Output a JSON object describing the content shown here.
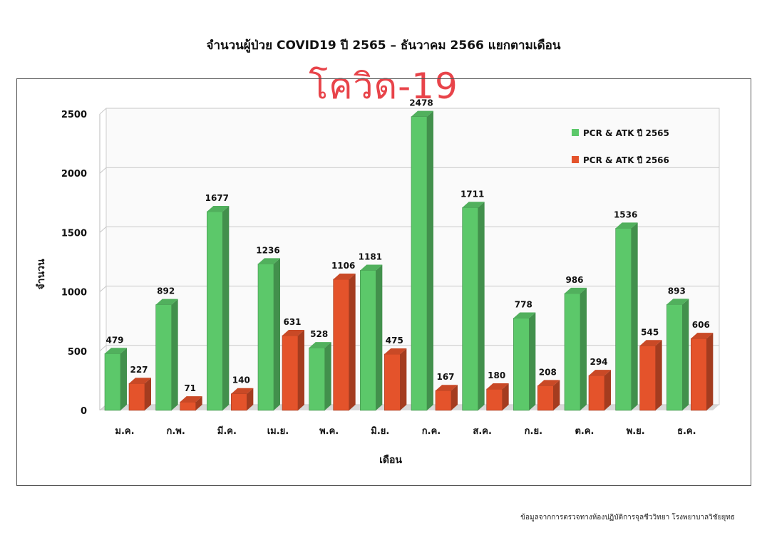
{
  "chart_data": {
    "type": "bar",
    "title": "จำนวนผู้ป่วย COVID19 ปี 2565 – ธันวาคม 2566 แยกตามเดือน",
    "subtitle": "โควิด-19",
    "xlabel": "เดือน",
    "ylabel": "จำนวน",
    "ylim": [
      0,
      2500
    ],
    "yticks": [
      "0",
      "500",
      "1000",
      "1500",
      "2000",
      "2500"
    ],
    "grid": true,
    "legend_position": "top-right",
    "categories": [
      "ม.ค.",
      "ก.พ.",
      "มี.ค.",
      "เม.ย.",
      "พ.ค.",
      "มิ.ย.",
      "ก.ค.",
      "ส.ค.",
      "ก.ย.",
      "ต.ค.",
      "พ.ย.",
      "ธ.ค."
    ],
    "series": [
      {
        "name": "PCR & ATK ปี 2565",
        "color": "#5cc86a",
        "values": [
          479,
          892,
          1677,
          1236,
          528,
          1181,
          2478,
          1711,
          778,
          986,
          1536,
          893
        ]
      },
      {
        "name": "PCR & ATK ปี 2566",
        "color": "#e4532b",
        "values": [
          227,
          71,
          140,
          631,
          1106,
          475,
          167,
          180,
          208,
          294,
          545,
          606
        ]
      }
    ]
  },
  "footer": "ข้อมูลจากการตรวจทางห้องปฏิบัติการจุลชีววิทยา โรงพยาบาลวิชัยยุทธ"
}
